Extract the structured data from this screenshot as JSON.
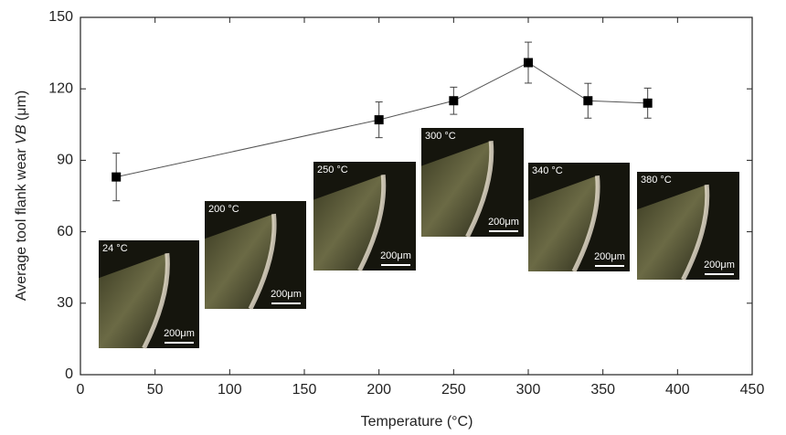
{
  "chart_data": {
    "type": "line",
    "x_label": "Temperature (°C)",
    "y_label": {
      "prefix": "Average tool flank wear ",
      "italic": "VB",
      "suffix": " (μm)"
    },
    "x": [
      24,
      200,
      250,
      300,
      340,
      380
    ],
    "series": [
      {
        "color": "#000000",
        "values": [
          83,
          107,
          115,
          131,
          115,
          114
        ],
        "errors": [
          10,
          7.5,
          5.7,
          8.6,
          7.3,
          6.3
        ]
      }
    ],
    "xlim": [
      0,
      450
    ],
    "xticks": [
      0,
      50,
      100,
      150,
      200,
      250,
      300,
      350,
      400,
      450
    ],
    "ylim": [
      0,
      150
    ],
    "yticks": [
      0,
      30,
      60,
      90,
      120,
      150
    ],
    "insets": [
      {
        "label": "24 °C",
        "scale": "200μm"
      },
      {
        "label": "200 °C",
        "scale": "200μm"
      },
      {
        "label": "250 °C",
        "scale": "200μm"
      },
      {
        "label": "300 °C",
        "scale": "200μm"
      },
      {
        "label": "340 °C",
        "scale": "200μm"
      },
      {
        "label": "380 °C",
        "scale": "200μm"
      }
    ]
  }
}
